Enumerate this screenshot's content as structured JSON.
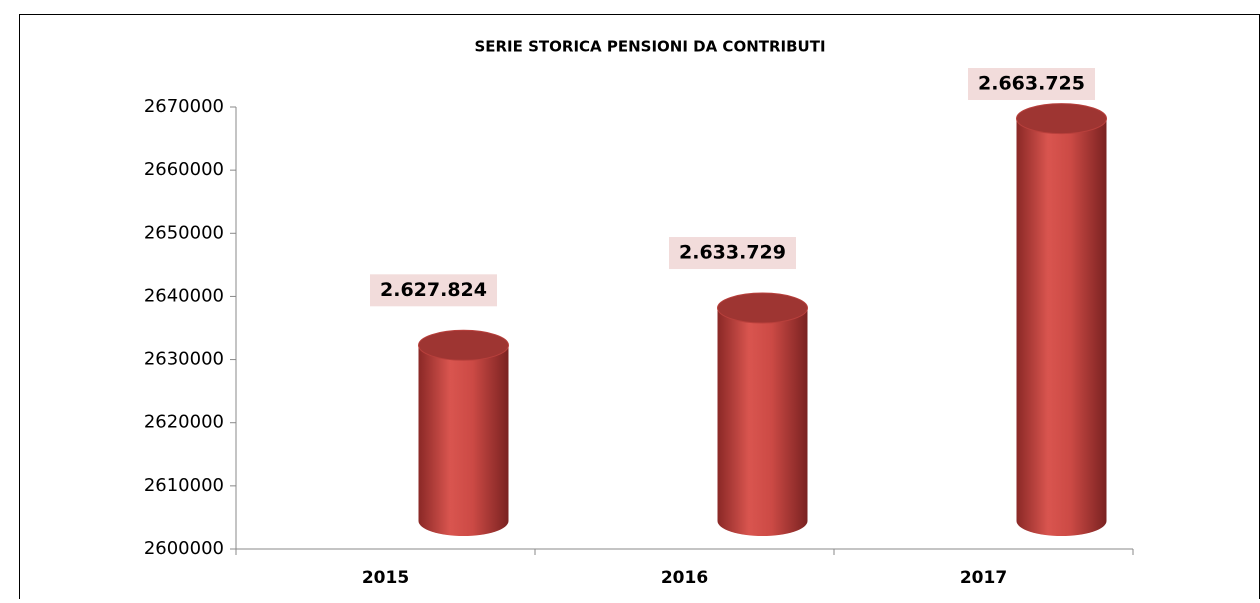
{
  "chart_data": {
    "type": "bar",
    "title": "SERIE STORICA PENSIONI DA CONTRIBUTI",
    "categories": [
      "2015",
      "2016",
      "2017"
    ],
    "values": [
      2627824,
      2633729,
      2663725
    ],
    "value_labels": [
      "2.627.824",
      "2.633.729",
      "2.663.725"
    ],
    "color": "#c0403c",
    "ylim": [
      2600000,
      2670000
    ],
    "yticks": [
      2600000,
      2610000,
      2620000,
      2630000,
      2640000,
      2650000,
      2660000,
      2670000
    ]
  }
}
